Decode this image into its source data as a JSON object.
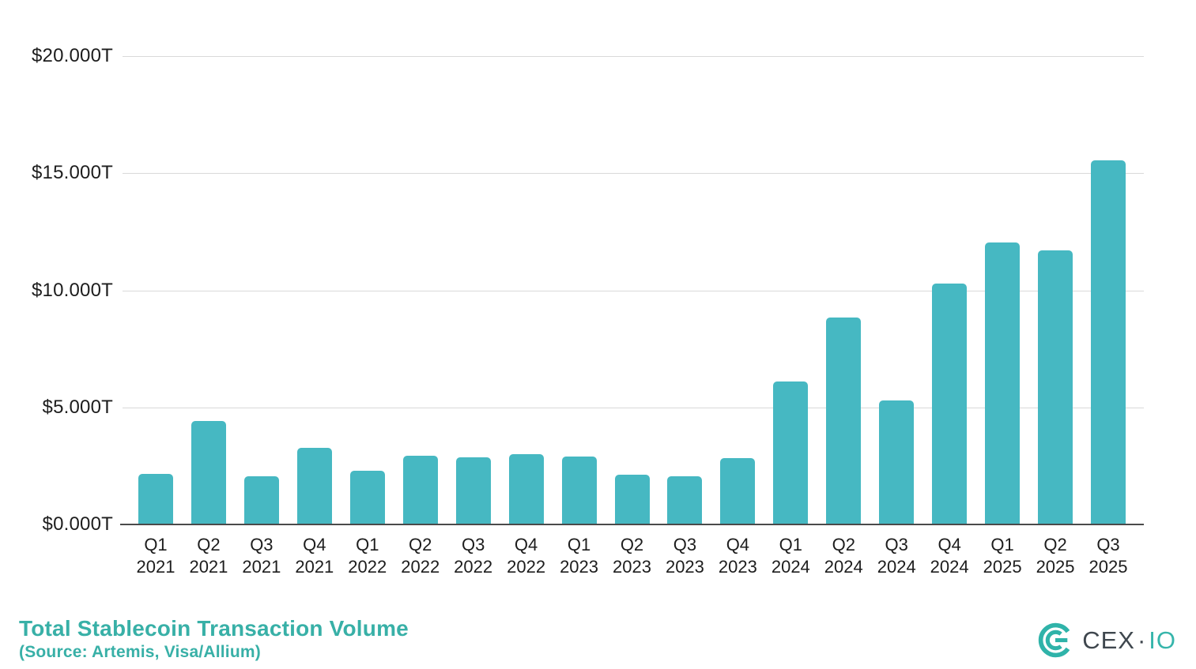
{
  "chart_data": {
    "type": "bar",
    "title": "Total Stablecoin Transaction Volume",
    "subtitle": "(Source: Artemis, Visa/Allium)",
    "categories": [
      "Q1 2021",
      "Q2 2021",
      "Q3 2021",
      "Q4 2021",
      "Q1 2022",
      "Q2 2022",
      "Q3 2022",
      "Q4 2022",
      "Q1 2023",
      "Q2 2023",
      "Q3 2023",
      "Q4 2023",
      "Q1 2024",
      "Q2 2024",
      "Q3 2024",
      "Q4 2024",
      "Q1 2025",
      "Q2 2025",
      "Q3 2025"
    ],
    "values": [
      2.17,
      4.43,
      2.05,
      3.27,
      2.3,
      2.92,
      2.87,
      3.0,
      2.9,
      2.13,
      2.05,
      2.85,
      6.1,
      8.85,
      5.3,
      10.3,
      12.05,
      11.7,
      15.55
    ],
    "value_unit": "trillion USD",
    "xlabel": "",
    "ylabel": "",
    "ylim": [
      0,
      20
    ],
    "yticks": [
      0,
      5,
      10,
      15,
      20
    ],
    "ytick_labels": [
      "$0.000T",
      "$5.000T",
      "$10.000T",
      "$15.000T",
      "$20.000T"
    ],
    "grid": "horizontal",
    "legend": "none",
    "bar_color": "#46b8c2",
    "gridline_color": "#d9d9d9",
    "axis_color": "#4a4a4a",
    "label_color": "#1d1d1d"
  },
  "footer": {
    "title": "Total Stablecoin Transaction Volume",
    "source_line": "(Source: Artemis, Visa/Allium)",
    "accent_color": "#38b0a7"
  },
  "logo": {
    "brand_primary": "CEX",
    "separator": "·",
    "brand_secondary": "IO",
    "mark_color": "#2fb3a9",
    "text_color": "#3f474e",
    "accent_color": "#36b5ab"
  }
}
